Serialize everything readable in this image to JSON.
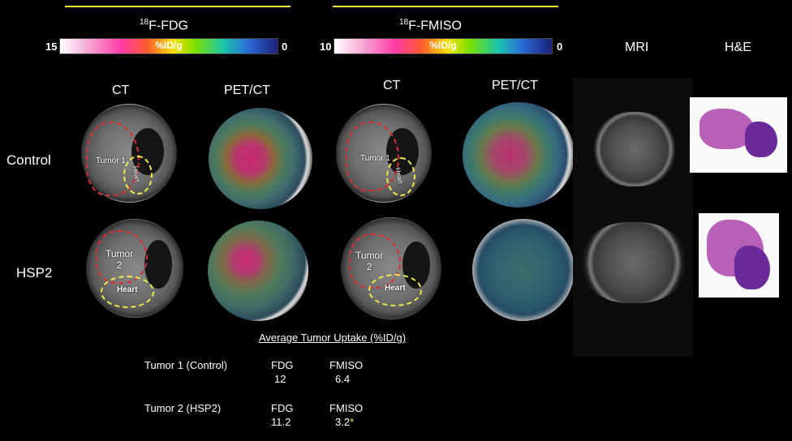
{
  "fdg": {
    "title_sup": "18",
    "title_main": "F-FDG",
    "cbar_label": "%ID/g",
    "max": "15",
    "min": "0"
  },
  "fmiso": {
    "title_sup": "18",
    "title_main": "F-FMISO",
    "cbar_label": "%ID/g",
    "max": "10",
    "min": "0"
  },
  "columns": {
    "ct": "CT",
    "petct": "PET/CT",
    "mri": "MRI",
    "he": "H&E"
  },
  "rows": {
    "control": "Control",
    "hsp2": "HSP2"
  },
  "labels": {
    "tumor1": "Tumor 1",
    "tumor2a": "Tumor",
    "tumor2b": "2",
    "heart": "Heart"
  },
  "uptake": {
    "title": "Average Tumor Uptake (%ID/g)",
    "rows": [
      {
        "name": "Tumor 1 (Control)",
        "fdg_label": "FDG",
        "fdg_value": "12",
        "fmiso_label": "FMISO",
        "fmiso_value": "6.4",
        "mark": ""
      },
      {
        "name": "Tumor 2 (HSP2)",
        "fdg_label": "FDG",
        "fdg_value": "11.2",
        "fmiso_label": "FMISO",
        "fmiso_value": "3.2",
        "mark": "*"
      }
    ]
  },
  "colors": {
    "tumor_outline": "#d83030",
    "heart_outline": "#f2e84a",
    "header_line": "#f2e84a"
  }
}
